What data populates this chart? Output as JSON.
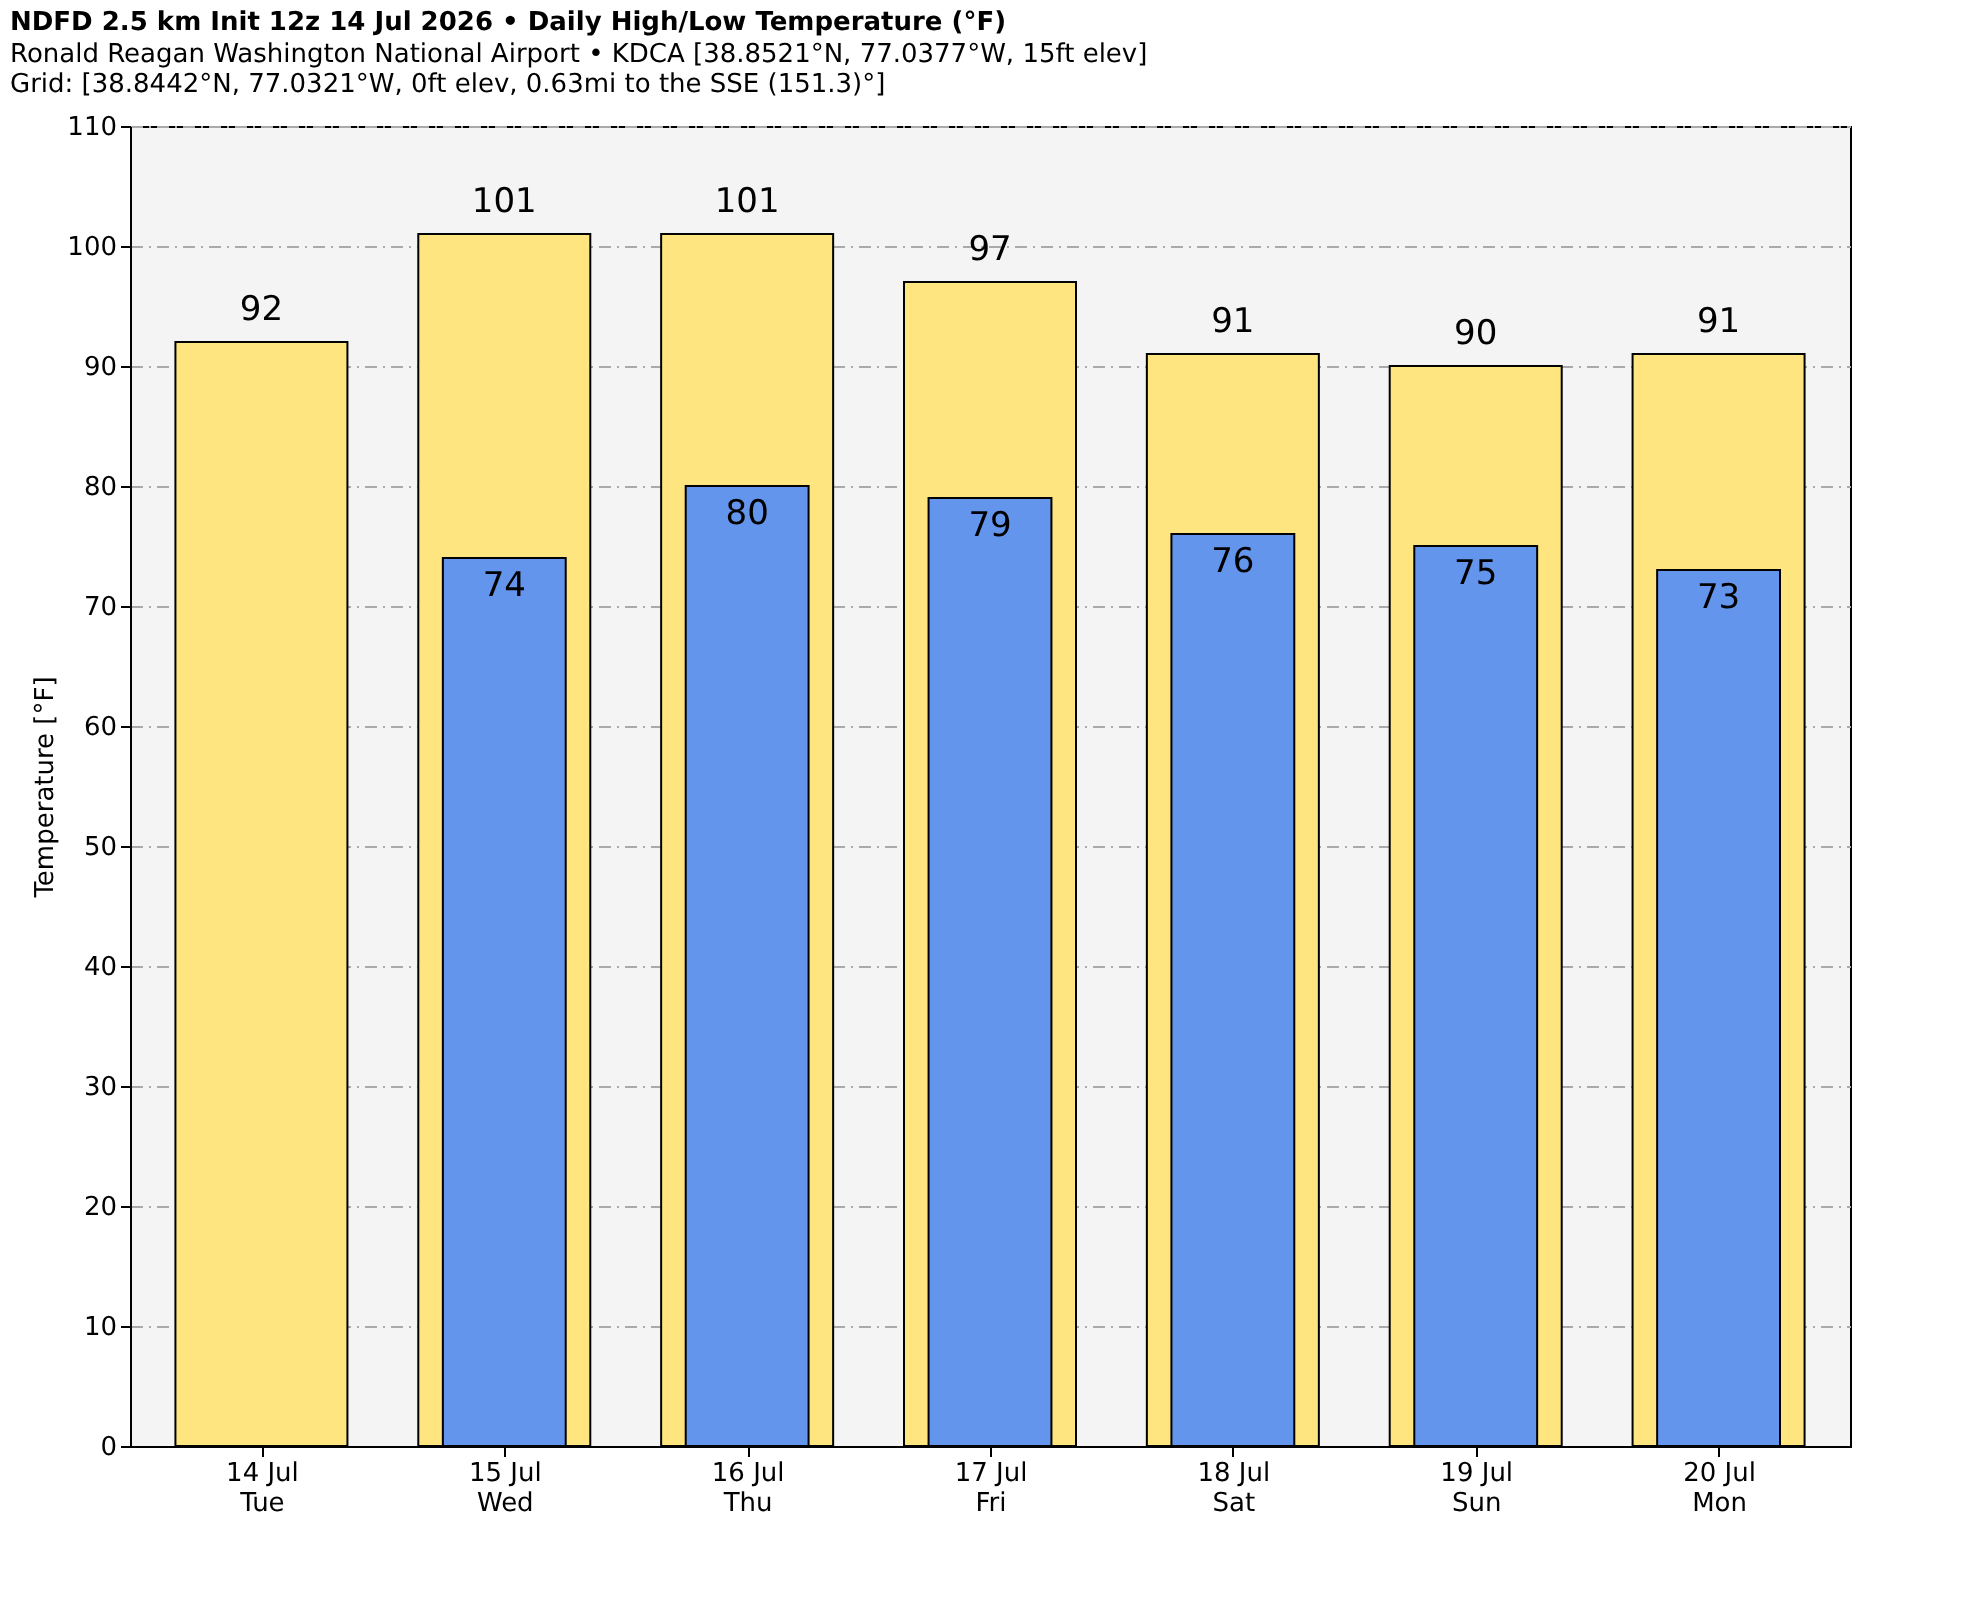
{
  "chart_data": {
    "type": "bar",
    "title": "NDFD 2.5 km Init 12z 14 Jul 2026 • Daily High/Low Temperature (°F)",
    "subtitle": [
      "Ronald Reagan Washington National Airport • KDCA [38.8521°N, 77.0377°W, 15ft elev]",
      "Grid: [38.8442°N, 77.0321°W, 0ft elev, 0.63mi to the SSE (151.3)°]"
    ],
    "ylabel": "Temperature [°F]",
    "categories": [
      "14 Jul\nTue",
      "15 Jul\nWed",
      "16 Jul\nThu",
      "17 Jul\nFri",
      "18 Jul\nSat",
      "19 Jul\nSun",
      "20 Jul\nMon"
    ],
    "series": [
      {
        "color": "#ffe57f",
        "values": [
          92,
          101,
          101,
          97,
          91,
          90,
          91
        ]
      },
      {
        "color": "#6495ed",
        "values": [
          null,
          74,
          80,
          79,
          76,
          75,
          73
        ]
      }
    ],
    "ylim": [
      0,
      110
    ],
    "yticks": [
      0,
      10,
      20,
      30,
      40,
      50,
      60,
      70,
      80,
      90,
      100,
      110
    ],
    "grid": "y",
    "data_labels": true
  }
}
